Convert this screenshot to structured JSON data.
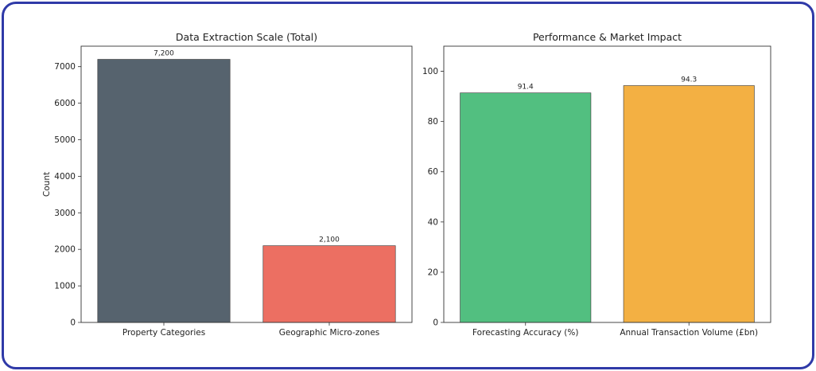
{
  "chart_data": [
    {
      "type": "bar",
      "title": "Data Extraction Scale (Total)",
      "xlabel": "",
      "ylabel": "Count",
      "categories": [
        "Property Categories",
        "Geographic Micro-zones"
      ],
      "values": [
        7200,
        2100
      ],
      "value_labels": [
        "7,200",
        "2,100"
      ],
      "colors": [
        "#56636e",
        "#ec6f62"
      ],
      "ylim": [
        0,
        7560
      ],
      "yticks": [
        0,
        1000,
        2000,
        3000,
        4000,
        5000,
        6000,
        7000
      ],
      "grid": false
    },
    {
      "type": "bar",
      "title": "Performance & Market Impact",
      "xlabel": "",
      "ylabel": "",
      "categories": [
        "Forecasting Accuracy (%)",
        "Annual Transaction Volume (£bn)"
      ],
      "values": [
        91.4,
        94.3
      ],
      "value_labels": [
        "91.4",
        "94.3"
      ],
      "colors": [
        "#52bf80",
        "#f3b043"
      ],
      "ylim": [
        0,
        110
      ],
      "yticks": [
        0,
        20,
        40,
        60,
        80,
        100
      ],
      "grid": false
    }
  ]
}
